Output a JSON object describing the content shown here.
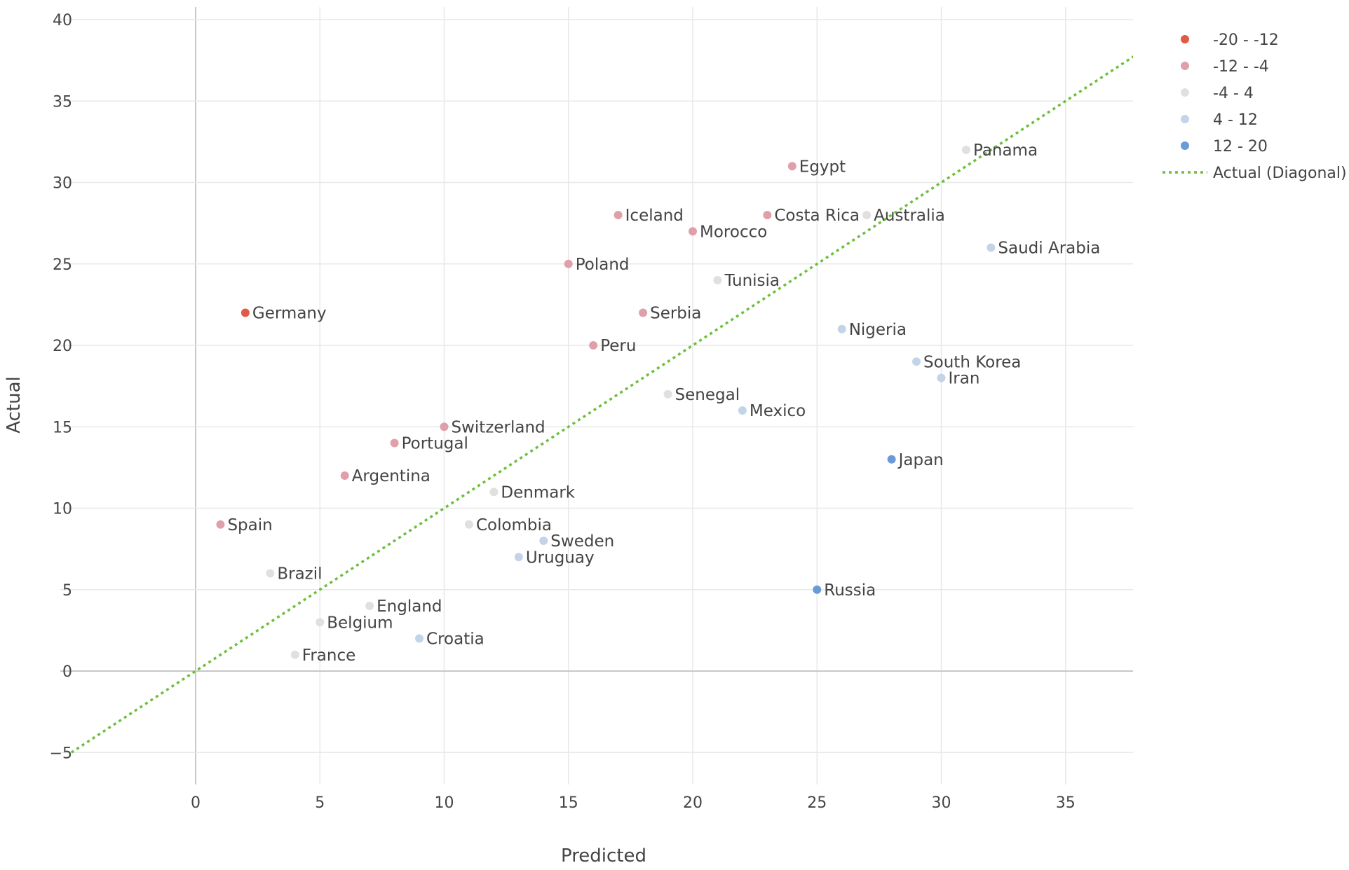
{
  "chart_data": {
    "type": "scatter",
    "xlabel": "Predicted",
    "ylabel": "Actual",
    "xlim": [
      -5,
      38
    ],
    "ylim": [
      -7,
      40
    ],
    "x_ticks": [
      0,
      5,
      10,
      15,
      20,
      25,
      30,
      35
    ],
    "y_ticks": [
      -5,
      0,
      5,
      10,
      15,
      20,
      25,
      30,
      35,
      40
    ],
    "x_tick_labels": [
      "0",
      "5",
      "10",
      "15",
      "20",
      "25",
      "30",
      "35"
    ],
    "y_tick_labels": [
      "−5",
      "0",
      "5",
      "10",
      "15",
      "20",
      "25",
      "30",
      "35",
      "40"
    ],
    "grid": true,
    "legend_position": "top-right",
    "series": [
      {
        "name": "-20 - -12",
        "color": "#e05a45",
        "points": [
          {
            "label": "Germany",
            "x": 2,
            "y": 22
          }
        ]
      },
      {
        "name": "-12 - -4",
        "color": "#e0a0aa",
        "points": [
          {
            "label": "Egypt",
            "x": 24,
            "y": 31
          },
          {
            "label": "Iceland",
            "x": 17,
            "y": 28
          },
          {
            "label": "Costa Rica",
            "x": 23,
            "y": 28
          },
          {
            "label": "Morocco",
            "x": 20,
            "y": 27
          },
          {
            "label": "Poland",
            "x": 15,
            "y": 25
          },
          {
            "label": "Serbia",
            "x": 18,
            "y": 22
          },
          {
            "label": "Peru",
            "x": 16,
            "y": 20
          },
          {
            "label": "Switzerland",
            "x": 10,
            "y": 15
          },
          {
            "label": "Portugal",
            "x": 8,
            "y": 14
          },
          {
            "label": "Argentina",
            "x": 6,
            "y": 12
          },
          {
            "label": "Spain",
            "x": 1,
            "y": 9
          }
        ]
      },
      {
        "name": "-4 - 4",
        "color": "#e0e0e0",
        "points": [
          {
            "label": "Panama",
            "x": 31,
            "y": 32
          },
          {
            "label": "Australia",
            "x": 27,
            "y": 28
          },
          {
            "label": "Tunisia",
            "x": 21,
            "y": 24
          },
          {
            "label": "Senegal",
            "x": 19,
            "y": 17
          },
          {
            "label": "Denmark",
            "x": 12,
            "y": 11
          },
          {
            "label": "Colombia",
            "x": 11,
            "y": 9
          },
          {
            "label": "Brazil",
            "x": 3,
            "y": 6
          },
          {
            "label": "England",
            "x": 7,
            "y": 4
          },
          {
            "label": "Belgium",
            "x": 5,
            "y": 3
          },
          {
            "label": "France",
            "x": 4,
            "y": 1
          }
        ]
      },
      {
        "name": "4 - 12",
        "color": "#c3d4e8",
        "points": [
          {
            "label": "Saudi Arabia",
            "x": 32,
            "y": 26
          },
          {
            "label": "Nigeria",
            "x": 26,
            "y": 21
          },
          {
            "label": "South Korea",
            "x": 29,
            "y": 19
          },
          {
            "label": "Iran",
            "x": 30,
            "y": 18
          },
          {
            "label": "Mexico",
            "x": 22,
            "y": 16
          },
          {
            "label": "Sweden",
            "x": 14,
            "y": 8
          },
          {
            "label": "Uruguay",
            "x": 13,
            "y": 7
          },
          {
            "label": "Croatia",
            "x": 9,
            "y": 2
          }
        ]
      },
      {
        "name": "12 - 20",
        "color": "#6a9ad8",
        "points": [
          {
            "label": "Japan",
            "x": 28,
            "y": 13
          },
          {
            "label": "Russia",
            "x": 25,
            "y": 5
          }
        ]
      }
    ],
    "diagonal": {
      "name": "Actual (Diagonal)",
      "color": "#6cbf3c",
      "style": "dotted"
    }
  }
}
